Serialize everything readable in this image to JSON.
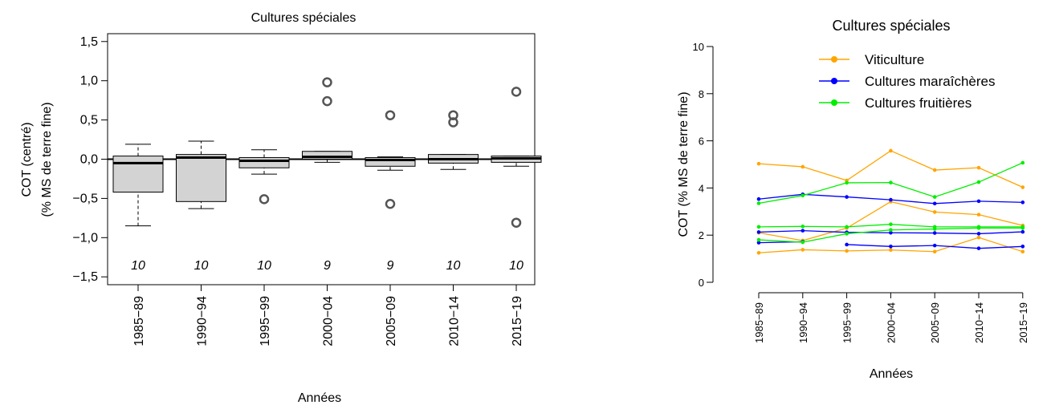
{
  "chart_data": [
    {
      "type": "boxplot",
      "title": "Cultures spéciales",
      "xlabel": "Années",
      "ylabel": [
        "COT (centré)",
        "(% MS de terre fine)"
      ],
      "ylim": [
        -1.6,
        1.6
      ],
      "yticks": [
        -1.5,
        -1.0,
        -0.5,
        0.0,
        0.5,
        1.0,
        1.5
      ],
      "ytick_labels": [
        "−1,5",
        "−1,0",
        "−0,5",
        "0,0",
        "0,5",
        "1,0",
        "1,5"
      ],
      "reference_line": 0,
      "box_fill": "#d3d3d3",
      "categories": [
        "1985−89",
        "1990−94",
        "1995−99",
        "2000−04",
        "2005−09",
        "2010−14",
        "2015−19"
      ],
      "counts": [
        "10",
        "10",
        "10",
        "9",
        "9",
        "10",
        "10"
      ],
      "boxes": [
        {
          "whisker_low": -0.85,
          "q1": -0.42,
          "median": -0.05,
          "q3": 0.04,
          "whisker_high": 0.19,
          "outliers": []
        },
        {
          "whisker_low": -0.63,
          "q1": -0.54,
          "median": 0.02,
          "q3": 0.06,
          "whisker_high": 0.23,
          "outliers": []
        },
        {
          "whisker_low": -0.19,
          "q1": -0.11,
          "median": -0.02,
          "q3": 0.02,
          "whisker_high": 0.12,
          "outliers": [
            -0.51
          ]
        },
        {
          "whisker_low": -0.04,
          "q1": 0.0,
          "median": 0.03,
          "q3": 0.1,
          "whisker_high": 0.1,
          "outliers": [
            0.98,
            0.74
          ]
        },
        {
          "whisker_low": -0.14,
          "q1": -0.09,
          "median": -0.01,
          "q3": 0.02,
          "whisker_high": 0.03,
          "outliers": [
            0.56,
            -0.57
          ]
        },
        {
          "whisker_low": -0.13,
          "q1": -0.05,
          "median": 0.0,
          "q3": 0.06,
          "whisker_high": 0.06,
          "outliers": [
            0.56,
            0.47
          ]
        },
        {
          "whisker_low": -0.09,
          "q1": -0.04,
          "median": 0.01,
          "q3": 0.04,
          "whisker_high": 0.04,
          "outliers": [
            0.86,
            -0.81
          ]
        }
      ]
    },
    {
      "type": "line",
      "title": "Cultures spéciales",
      "xlabel": "Années",
      "ylabel": "COT (% MS de terre fine)",
      "ylim": [
        0,
        10
      ],
      "yticks": [
        0,
        2,
        4,
        6,
        8,
        10
      ],
      "ytick_labels": [
        "0",
        "2",
        "4",
        "6",
        "8",
        "10"
      ],
      "legend_position": "top-center",
      "categories": [
        "1985−89",
        "1990−94",
        "1995−99",
        "2000−04",
        "2005−09",
        "2010−14",
        "2015−19"
      ],
      "legend": [
        {
          "label": "Viticulture",
          "color": "#ffa500"
        },
        {
          "label": "Cultures maraîchères",
          "color": "#0000ff"
        },
        {
          "label": "Cultures fruitières",
          "color": "#00ee00"
        }
      ],
      "series": [
        {
          "group": "Viticulture",
          "color": "#ffa500",
          "values": [
            5.03,
            4.9,
            4.32,
            5.58,
            4.76,
            4.86,
            4.03
          ]
        },
        {
          "group": "Viticulture",
          "color": "#ffa500",
          "values": [
            2.1,
            1.77,
            2.3,
            3.42,
            2.98,
            2.87,
            2.41
          ]
        },
        {
          "group": "Viticulture",
          "color": "#ffa500",
          "values": [
            1.25,
            1.38,
            1.33,
            1.37,
            1.3,
            1.9,
            1.3
          ]
        },
        {
          "group": "Cultures maraîchères",
          "color": "#0000ff",
          "values": [
            3.53,
            3.73,
            3.62,
            3.5,
            3.34,
            3.44,
            3.39
          ]
        },
        {
          "group": "Cultures maraîchères",
          "color": "#0000ff",
          "values": [
            2.13,
            2.19,
            2.12,
            2.1,
            2.09,
            2.06,
            2.14
          ]
        },
        {
          "group": "Cultures maraîchères",
          "color": "#0000ff",
          "values": [
            1.68,
            1.72,
            null,
            null,
            null,
            null,
            null
          ]
        },
        {
          "group": "Cultures maraîchères",
          "color": "#0000ff",
          "values": [
            null,
            null,
            1.6,
            1.52,
            1.56,
            1.44,
            1.52
          ]
        },
        {
          "group": "Cultures fruitières",
          "color": "#00ee00",
          "values": [
            3.35,
            3.68,
            4.22,
            4.23,
            3.62,
            4.25,
            5.07
          ]
        },
        {
          "group": "Cultures fruitières",
          "color": "#00ee00",
          "values": [
            2.35,
            2.37,
            2.35,
            2.46,
            2.35,
            2.35,
            2.35
          ]
        },
        {
          "group": "Cultures fruitières",
          "color": "#00ee00",
          "values": [
            1.8,
            1.7,
            2.06,
            2.22,
            2.26,
            2.3,
            2.3
          ]
        }
      ]
    }
  ]
}
